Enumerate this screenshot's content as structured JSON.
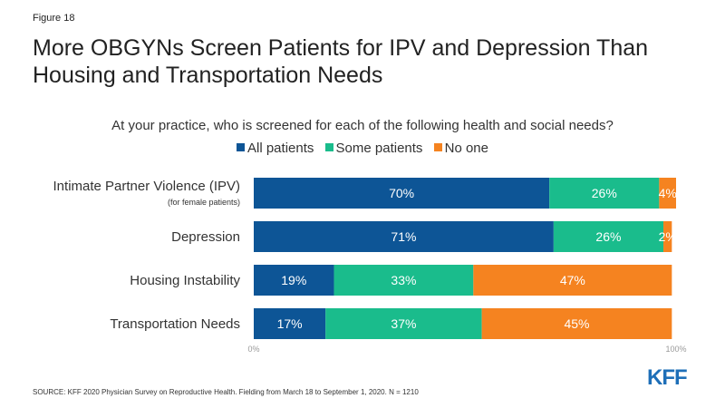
{
  "figure_label": "Figure 18",
  "title": "More OBGYNs Screen Patients for IPV and Depression Than Housing and Transportation Needs",
  "subtitle": "At your practice, who is screened for each of the following health and social needs?",
  "legend": [
    {
      "label": "All patients",
      "color": "#0d5596"
    },
    {
      "label": "Some patients",
      "color": "#1abc8c"
    },
    {
      "label": "No one",
      "color": "#f58320"
    }
  ],
  "chart_data": {
    "type": "bar",
    "orientation": "horizontal",
    "stacked": true,
    "categories": [
      "Intimate Partner Violence (IPV)",
      "Depression",
      "Housing Instability",
      "Transportation Needs"
    ],
    "category_sublabels": [
      "(for female patients)",
      "",
      "",
      ""
    ],
    "series": [
      {
        "name": "All patients",
        "color": "#0d5596",
        "values": [
          70,
          71,
          19,
          17
        ],
        "labels": [
          "70%",
          "71%",
          "19%",
          "17%"
        ]
      },
      {
        "name": "Some patients",
        "color": "#1abc8c",
        "values": [
          26,
          26,
          33,
          37
        ],
        "labels": [
          "26%",
          "26%",
          "33%",
          "37%"
        ]
      },
      {
        "name": "No one",
        "color": "#f58320",
        "values": [
          4,
          2,
          47,
          45
        ],
        "labels": [
          "4%",
          "2%",
          "47%",
          "45%"
        ]
      }
    ],
    "xlim": [
      0,
      100
    ],
    "x_ticks": [
      "0%",
      "100%"
    ],
    "legend_position": "top"
  },
  "source": "SOURCE: KFF 2020 Physician Survey on Reproductive Health. Fielding from March 18 to September 1, 2020. N = 1210",
  "logo_text": "KFF"
}
